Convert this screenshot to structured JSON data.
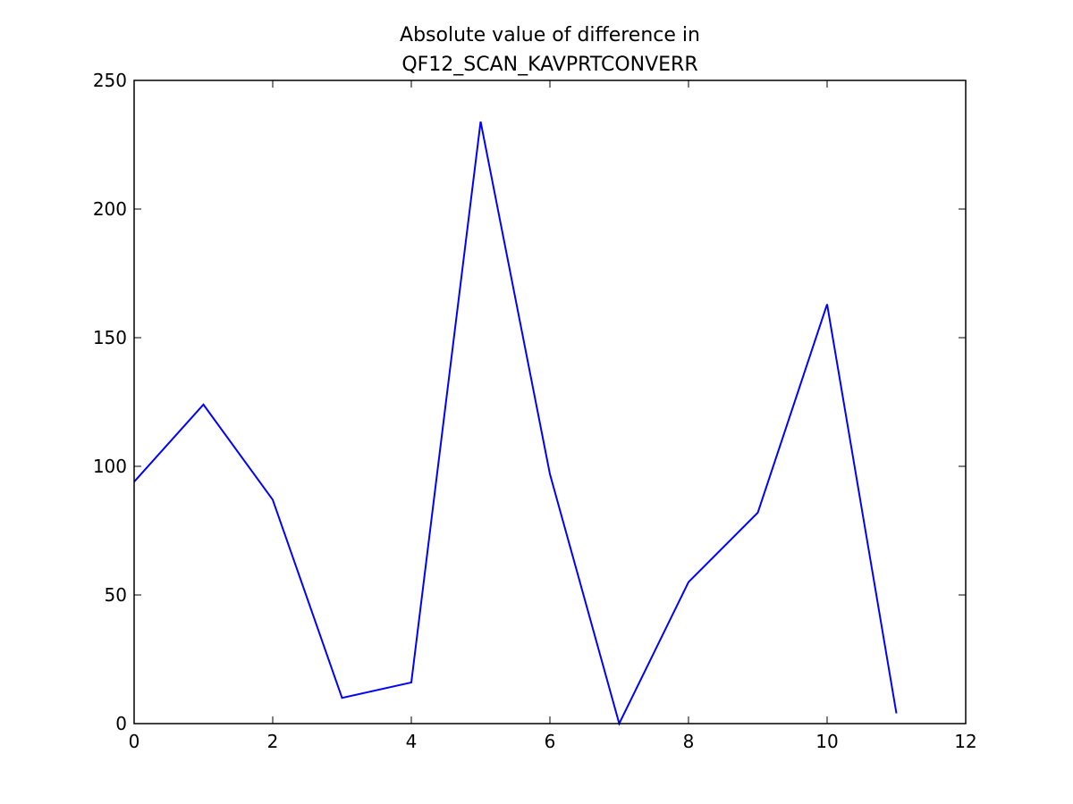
{
  "chart_data": {
    "type": "line",
    "title": [
      "Absolute value of difference in",
      "QF12_SCAN_KAVPRTCONVERR"
    ],
    "x": [
      0,
      1,
      2,
      3,
      4,
      5,
      6,
      7,
      8,
      9,
      10,
      11
    ],
    "values": [
      94,
      124,
      87,
      10,
      16,
      234,
      97,
      0,
      55,
      82,
      163,
      4
    ],
    "color": "#0000ff",
    "xlim": [
      0,
      12
    ],
    "xticks": [
      0,
      2,
      4,
      6,
      8,
      10,
      12
    ],
    "ylim": [
      0,
      250
    ],
    "yticks": [
      0,
      50,
      100,
      150,
      200,
      250
    ],
    "grid": false
  }
}
